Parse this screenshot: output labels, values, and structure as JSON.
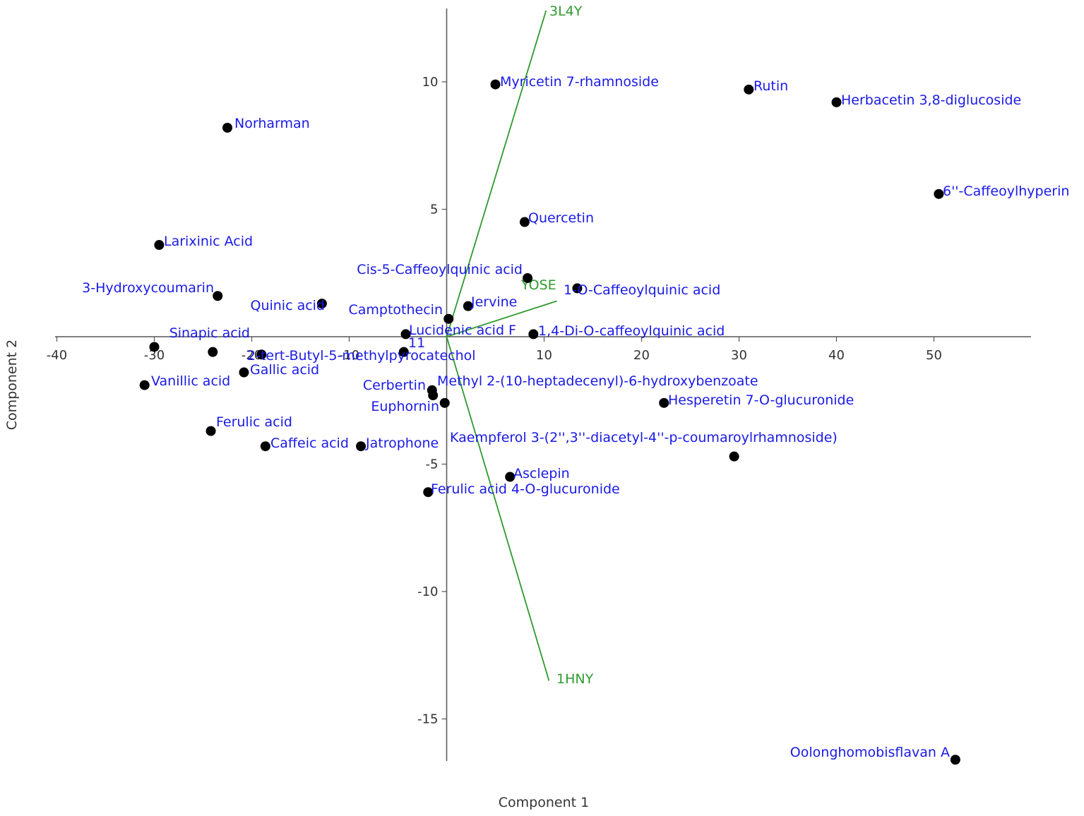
{
  "chart_data": {
    "type": "scatter",
    "title": "",
    "xlabel": "Component 1",
    "ylabel": "Component 2",
    "xlim": [
      -40,
      60
    ],
    "ylim": [
      -16.5,
      12.8
    ],
    "x_ticks": [
      -40,
      -30,
      -20,
      -10,
      10,
      20,
      30,
      40,
      50
    ],
    "y_ticks": [
      -15,
      -10,
      -5,
      5,
      10
    ],
    "grid": false,
    "colors": {
      "points": "#000000",
      "labels": "#1a1ae6",
      "loadings": "#2e9a2e",
      "axes": "#555555"
    },
    "points": [
      {
        "label": "Norharman",
        "x": -22.5,
        "y": 8.2
      },
      {
        "label": "Larixinic Acid",
        "x": -29.5,
        "y": 3.6
      },
      {
        "label": "3-Hydroxycoumarin",
        "x": -23.5,
        "y": 1.6
      },
      {
        "label": "Quinic acid",
        "x": -12.8,
        "y": 1.3
      },
      {
        "label": "",
        "x": -30.0,
        "y": -0.4
      },
      {
        "label": "Sinapic acid",
        "x": -24.0,
        "y": -0.6
      },
      {
        "label": "2-tert-Butyl-5-methylpyrocatechol",
        "x": -19.0,
        "y": -0.7
      },
      {
        "label": "Gallic acid",
        "x": -20.8,
        "y": -1.4
      },
      {
        "label": "Vanillic acid",
        "x": -31.0,
        "y": -1.9
      },
      {
        "label": "Ferulic acid",
        "x": -24.2,
        "y": -3.7
      },
      {
        "label": "Caffeic acid",
        "x": -18.6,
        "y": -4.3
      },
      {
        "label": "Jatrophone",
        "x": -8.8,
        "y": -4.3
      },
      {
        "label": "Lucidenic acid F",
        "x": -4.2,
        "y": 0.1
      },
      {
        "label": "11",
        "x": -4.4,
        "y": -0.6
      },
      {
        "label": "Camptothecin",
        "x": 0.2,
        "y": 0.7
      },
      {
        "label": "Jervine",
        "x": 2.2,
        "y": 1.2
      },
      {
        "label": "Cerbertin",
        "x": -1.5,
        "y": -2.1
      },
      {
        "label": "Methyl 2-(10-heptadecenyl)-6-hydroxybenzoate",
        "x": -1.4,
        "y": -2.3
      },
      {
        "label": "Euphornin",
        "x": -0.2,
        "y": -2.6
      },
      {
        "label": "Asclepin",
        "x": 6.5,
        "y": -5.5
      },
      {
        "label": "Ferulic acid 4-O-glucuronide",
        "x": -1.9,
        "y": -6.1
      },
      {
        "label": "Myricetin 7-rhamnoside",
        "x": 5.0,
        "y": 9.9
      },
      {
        "label": "Quercetin",
        "x": 8.0,
        "y": 4.5
      },
      {
        "label": "Cis-5-Caffeoylquinic acid",
        "x": 8.3,
        "y": 2.3
      },
      {
        "label": "1-O-Caffeoylquinic acid",
        "x": 13.4,
        "y": 1.9
      },
      {
        "label": "1,4-Di-O-caffeoylquinic acid",
        "x": 8.9,
        "y": 0.1
      },
      {
        "label": "Rutin",
        "x": 31.0,
        "y": 9.7
      },
      {
        "label": "Herbacetin 3,8-diglucoside",
        "x": 40.0,
        "y": 9.2
      },
      {
        "label": "6''-Caffeoylhyperin",
        "x": 50.5,
        "y": 5.6
      },
      {
        "label": "Hesperetin 7-O-glucuronide",
        "x": 22.3,
        "y": -2.6
      },
      {
        "label": "Kaempferol 3-(2'',3''-diacetyl-4''-p-coumaroylrhamnoside)",
        "x": 29.5,
        "y": -4.7
      },
      {
        "label": "Oolonghomobisflavan A",
        "x": 52.2,
        "y": -16.6
      }
    ],
    "loadings": [
      {
        "label": "3L4Y",
        "x": 10.2,
        "y": 12.8
      },
      {
        "label": "YOSE",
        "x": 11.3,
        "y": 1.4
      },
      {
        "label": "1HNY",
        "x": 10.5,
        "y": -13.5
      }
    ]
  }
}
